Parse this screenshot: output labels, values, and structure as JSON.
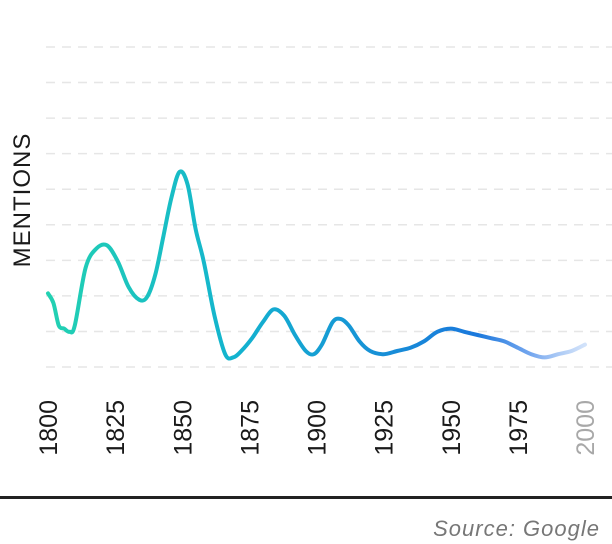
{
  "chart_data": {
    "type": "line",
    "ylabel": "MENTIONS",
    "xlabel": "",
    "xlim": [
      1800,
      2000
    ],
    "ylim": [
      0,
      100
    ],
    "grid": true,
    "x_ticks": [
      "1800",
      "1825",
      "1850",
      "1875",
      "1900",
      "1925",
      "1950",
      "1975",
      "2000"
    ],
    "series": [
      {
        "x": [
          1800,
          1802,
          1804,
          1806,
          1808,
          1810,
          1814,
          1818,
          1822,
          1826,
          1830,
          1834,
          1837,
          1840,
          1843,
          1846,
          1849,
          1852,
          1855,
          1858,
          1862,
          1866,
          1869,
          1872,
          1876,
          1880,
          1884,
          1888,
          1892,
          1896,
          1899,
          1902,
          1906,
          1909,
          1912,
          1916,
          1920,
          1925,
          1930,
          1935,
          1940,
          1945,
          1950,
          1955,
          1960,
          1965,
          1970,
          1975,
          1980,
          1985,
          1990,
          1995,
          2000
        ],
        "y": [
          23,
          20,
          13,
          12,
          11,
          13,
          31,
          37,
          38,
          33,
          25,
          21,
          22,
          29,
          41,
          53,
          61,
          57,
          43,
          33,
          16,
          4,
          3,
          5,
          9,
          14,
          18,
          16,
          10,
          5,
          4,
          7,
          14,
          15,
          13,
          8,
          5,
          4,
          5,
          6,
          8,
          11,
          12,
          11,
          10,
          9,
          8,
          6,
          4,
          3,
          4,
          5,
          7
        ]
      }
    ]
  },
  "source": "Source: Google"
}
